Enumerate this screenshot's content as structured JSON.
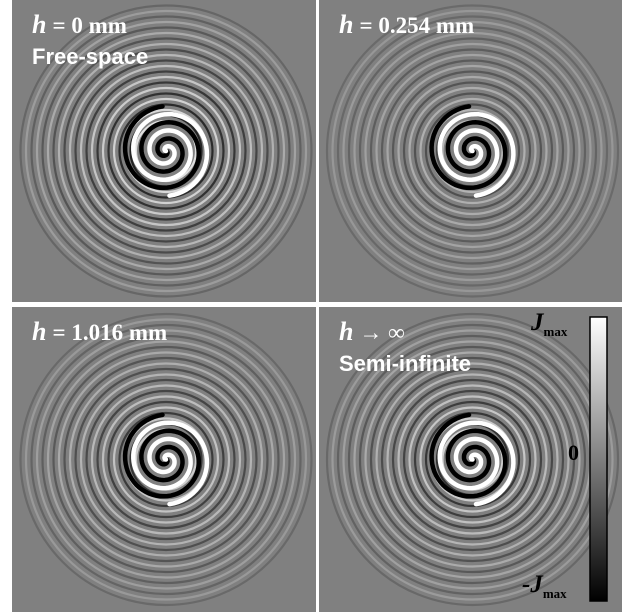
{
  "panels": [
    {
      "symbol": "h",
      "relation": "= 0 mm",
      "caption": "Free-space"
    },
    {
      "symbol": "h",
      "relation": "= 0.254 mm"
    },
    {
      "symbol": "h",
      "relation": "= 1.016 mm"
    },
    {
      "symbol": "h",
      "relation": "→ ∞",
      "caption": "Semi-infinite"
    }
  ],
  "colorbar": {
    "top": {
      "main": "J",
      "sub": "max"
    },
    "middle": "0",
    "bottom": {
      "main": "-J",
      "sub": "max"
    }
  }
}
